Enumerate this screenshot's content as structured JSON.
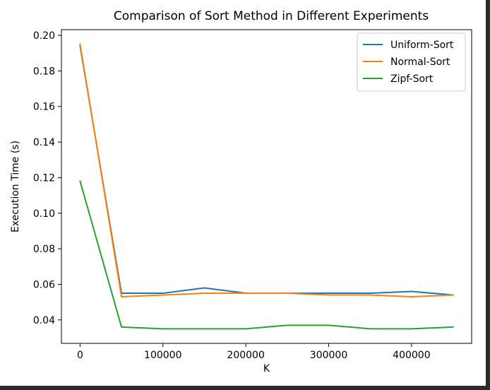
{
  "chart_data": {
    "type": "line",
    "title": "Comparison of Sort Method in Different Experiments",
    "xlabel": "K",
    "ylabel": "Execution Time (s)",
    "x": [
      0,
      50000,
      100000,
      150000,
      200000,
      250000,
      300000,
      350000,
      400000,
      450000
    ],
    "xlim": [
      -22500,
      472500
    ],
    "ylim": [
      0.0268,
      0.2032
    ],
    "xticks": [
      0,
      100000,
      200000,
      300000,
      400000
    ],
    "xtick_labels": [
      "0",
      "100000",
      "200000",
      "300000",
      "400000"
    ],
    "yticks": [
      0.04,
      0.06,
      0.08,
      0.1,
      0.12,
      0.14,
      0.16,
      0.18,
      0.2
    ],
    "ytick_labels": [
      "0.04",
      "0.06",
      "0.08",
      "0.10",
      "0.12",
      "0.14",
      "0.16",
      "0.18",
      "0.20"
    ],
    "grid": false,
    "legend_position": "top-right",
    "series": [
      {
        "name": "Uniform-Sort",
        "color": "#1f77b4",
        "values": [
          0.194,
          0.055,
          0.055,
          0.058,
          0.055,
          0.055,
          0.055,
          0.055,
          0.056,
          0.054
        ]
      },
      {
        "name": "Normal-Sort",
        "color": "#ff7f0e",
        "values": [
          0.195,
          0.053,
          0.054,
          0.055,
          0.055,
          0.055,
          0.054,
          0.054,
          0.053,
          0.054
        ]
      },
      {
        "name": "Zipf-Sort",
        "color": "#2ca02c",
        "values": [
          0.118,
          0.036,
          0.035,
          0.035,
          0.035,
          0.037,
          0.037,
          0.035,
          0.035,
          0.036
        ]
      }
    ]
  }
}
